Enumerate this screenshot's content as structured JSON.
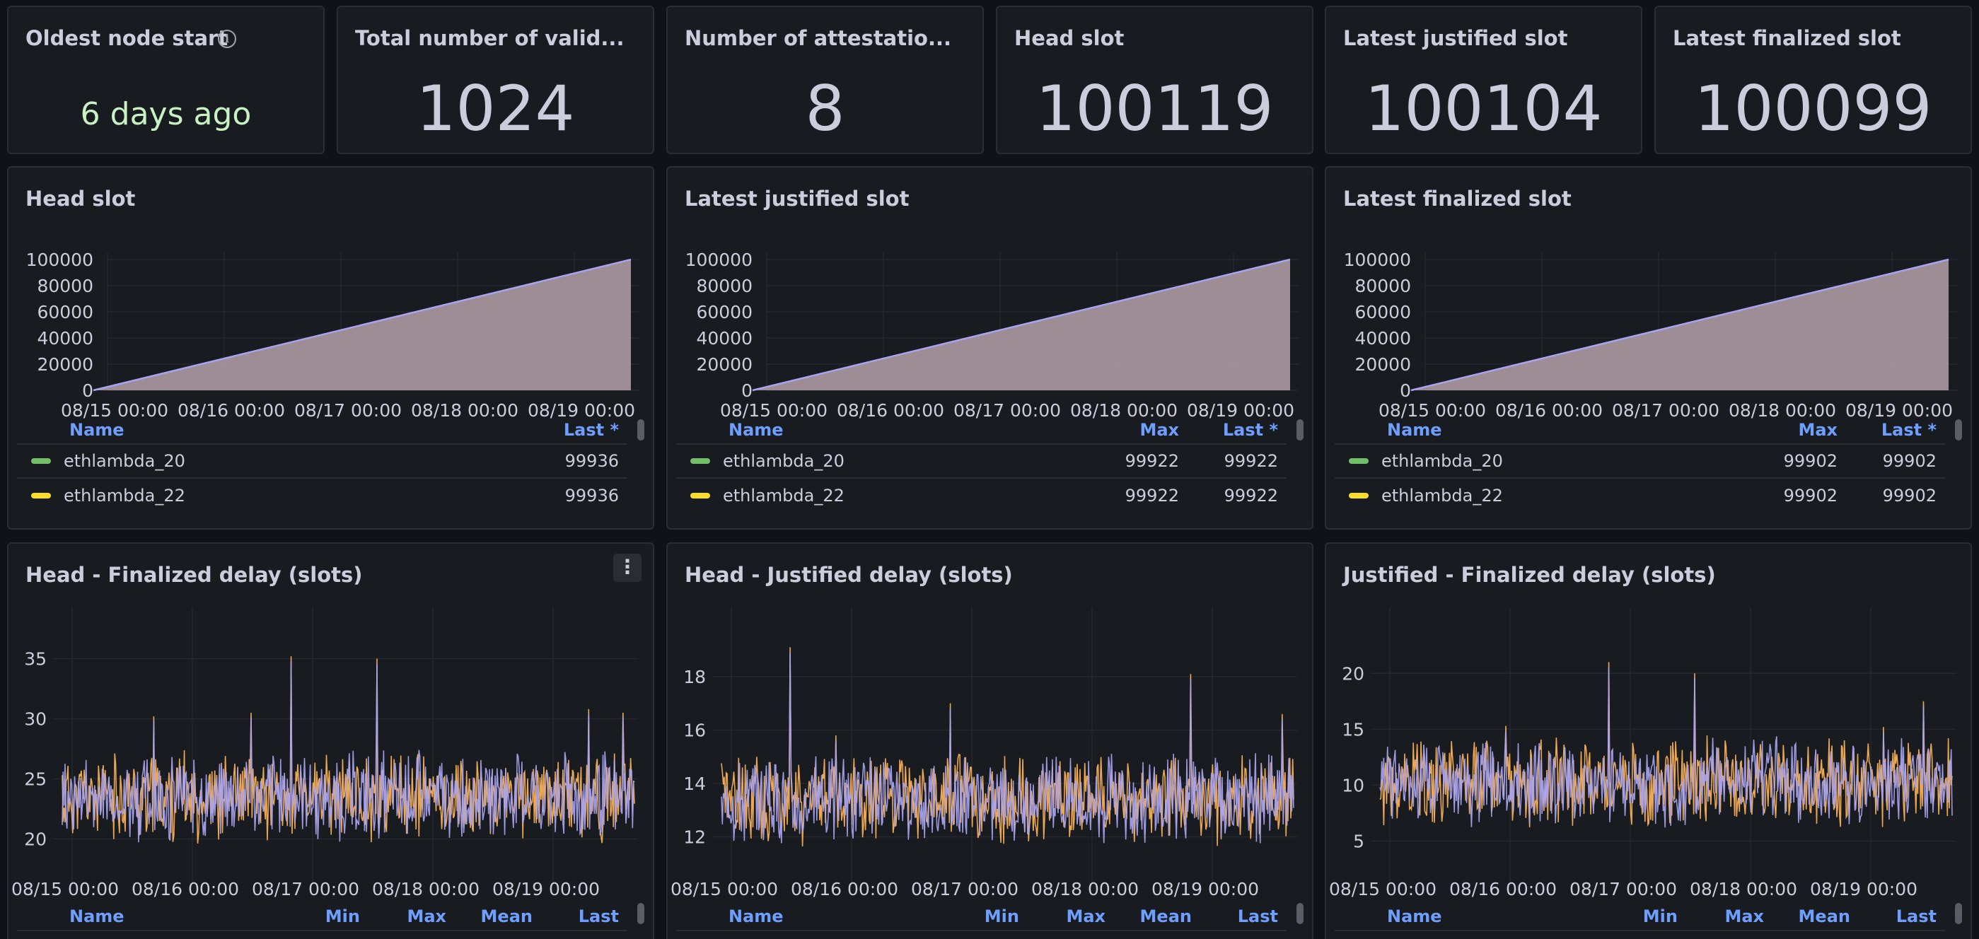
{
  "stats": [
    {
      "title": "Oldest node start",
      "value": "6 days ago",
      "info_icon": "info-icon"
    },
    {
      "title": "Total number of valid...",
      "value": "1024"
    },
    {
      "title": "Number of attestatio...",
      "value": "8"
    },
    {
      "title": "Head slot",
      "value": "100119"
    },
    {
      "title": "Latest justified slot",
      "value": "100104"
    },
    {
      "title": "Latest finalized slot",
      "value": "100099"
    }
  ],
  "colors": {
    "area_fill": "#a6939d",
    "line_purple": "#a8a4f0",
    "line_orange": "#ffb357",
    "series_green": "#73bf69",
    "series_yellow": "#fade2a",
    "legend_header": "#6e9fff",
    "stat_green": "#c8f2c2"
  },
  "slot_panels": [
    {
      "title": "Head slot",
      "legend": {
        "columns": [
          "Name",
          "Last *"
        ],
        "rows": [
          {
            "name": "ethlambda_20",
            "values": [
              "99936"
            ]
          },
          {
            "name": "ethlambda_22",
            "values": [
              "99936"
            ]
          }
        ]
      },
      "chart_data": {
        "type": "area",
        "x": [
          "08/15 00:00",
          "08/16 00:00",
          "08/17 00:00",
          "08/18 00:00",
          "08/19 00:00"
        ],
        "y_ticks": [
          "100000",
          "80000",
          "60000",
          "40000",
          "20000",
          "0"
        ],
        "ylim": [
          0,
          100000
        ],
        "series": [
          {
            "name": "ethlambda_20",
            "start": 0,
            "end": 100000
          },
          {
            "name": "ethlambda_22",
            "start": 0,
            "end": 100000
          }
        ]
      }
    },
    {
      "title": "Latest justified slot",
      "legend": {
        "columns": [
          "Name",
          "Max",
          "Last *"
        ],
        "rows": [
          {
            "name": "ethlambda_20",
            "values": [
              "99922",
              "99922"
            ]
          },
          {
            "name": "ethlambda_22",
            "values": [
              "99922",
              "99922"
            ]
          }
        ]
      },
      "chart_data": {
        "type": "area",
        "x": [
          "08/15 00:00",
          "08/16 00:00",
          "08/17 00:00",
          "08/18 00:00",
          "08/19 00:00"
        ],
        "y_ticks": [
          "100000",
          "80000",
          "60000",
          "40000",
          "20000",
          "0"
        ],
        "ylim": [
          0,
          100000
        ],
        "series": [
          {
            "name": "ethlambda_20",
            "start": 0,
            "end": 100000
          },
          {
            "name": "ethlambda_22",
            "start": 0,
            "end": 100000
          }
        ]
      }
    },
    {
      "title": "Latest finalized slot",
      "legend": {
        "columns": [
          "Name",
          "Max",
          "Last *"
        ],
        "rows": [
          {
            "name": "ethlambda_20",
            "values": [
              "99902",
              "99902"
            ]
          },
          {
            "name": "ethlambda_22",
            "values": [
              "99902",
              "99902"
            ]
          }
        ]
      },
      "chart_data": {
        "type": "area",
        "x": [
          "08/15 00:00",
          "08/16 00:00",
          "08/17 00:00",
          "08/18 00:00",
          "08/19 00:00"
        ],
        "y_ticks": [
          "100000",
          "80000",
          "60000",
          "40000",
          "20000",
          "0"
        ],
        "ylim": [
          0,
          100000
        ],
        "series": [
          {
            "name": "ethlambda_20",
            "start": 0,
            "end": 100000
          },
          {
            "name": "ethlambda_22",
            "start": 0,
            "end": 100000
          }
        ]
      }
    }
  ],
  "delay_panels": [
    {
      "title": "Head - Finalized delay (slots)",
      "menu_icon": "more-vertical-icon",
      "legend_columns": [
        "Name",
        "Min",
        "Max",
        "Mean",
        "Last"
      ],
      "chart_data": {
        "type": "line",
        "x": [
          "08/15 00:00",
          "08/16 00:00",
          "08/17 00:00",
          "08/18 00:00",
          "08/19 00:00"
        ],
        "y_ticks": [
          "35",
          "30",
          "25",
          "20"
        ],
        "ylim": [
          17.5,
          37.5
        ],
        "baseline": 23.5,
        "spikes": [
          [
            0.4,
            35.2
          ],
          [
            0.55,
            35.0
          ],
          [
            0.33,
            30.5
          ],
          [
            0.16,
            30.2
          ],
          [
            0.98,
            30.5
          ],
          [
            0.92,
            30.8
          ]
        ]
      }
    },
    {
      "title": "Head - Justified delay (slots)",
      "legend_columns": [
        "Name",
        "Min",
        "Max",
        "Mean",
        "Last"
      ],
      "chart_data": {
        "type": "line",
        "x": [
          "08/15 00:00",
          "08/16 00:00",
          "08/17 00:00",
          "08/18 00:00",
          "08/19 00:00"
        ],
        "y_ticks": [
          "18",
          "16",
          "14",
          "12"
        ],
        "ylim": [
          10.8,
          19.8
        ],
        "baseline": 13.4,
        "spikes": [
          [
            0.12,
            19.1
          ],
          [
            0.4,
            17.0
          ],
          [
            0.82,
            18.1
          ],
          [
            0.2,
            15.8
          ],
          [
            0.98,
            16.6
          ]
        ]
      }
    },
    {
      "title": "Justified - Finalized delay (slots)",
      "legend_columns": [
        "Name",
        "Min",
        "Max",
        "Mean",
        "Last"
      ],
      "chart_data": {
        "type": "line",
        "x": [
          "08/15 00:00",
          "08/16 00:00",
          "08/17 00:00",
          "08/18 00:00",
          "08/19 00:00"
        ],
        "y_ticks": [
          "20",
          "15",
          "10",
          "5"
        ],
        "ylim": [
          2.5,
          24
        ],
        "baseline": 10.2,
        "spikes": [
          [
            0.4,
            21.0
          ],
          [
            0.55,
            20.0
          ],
          [
            0.95,
            17.5
          ],
          [
            0.88,
            15.2
          ],
          [
            0.22,
            15.3
          ]
        ]
      }
    }
  ]
}
